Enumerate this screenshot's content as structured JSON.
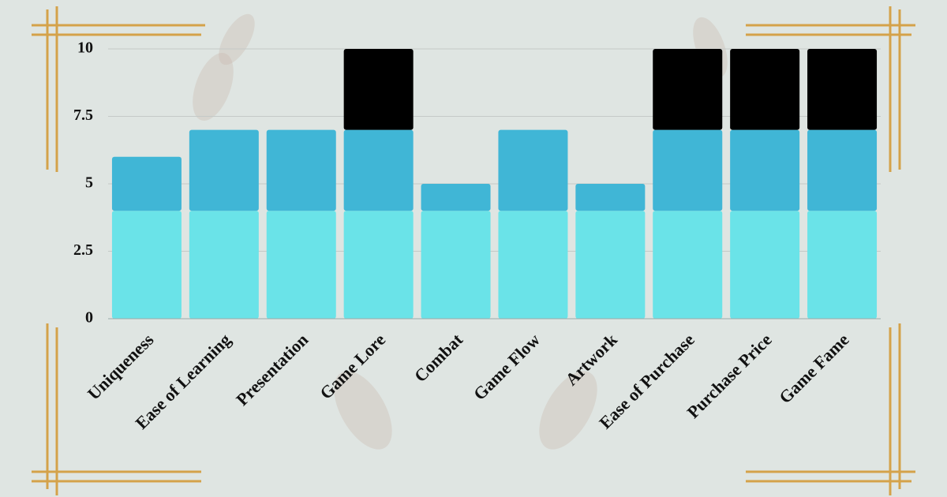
{
  "chart_data": {
    "type": "stacked-bar",
    "categories": [
      "Uniqueness",
      "Ease of Learning",
      "Presentation",
      "Game Lore",
      "Combat",
      "Game Flow",
      "Artwork",
      "Ease of Purchase",
      "Purchase Price",
      "Game Fame"
    ],
    "series": [
      {
        "color": "#6ae3e8",
        "values": [
          4,
          4,
          4,
          4,
          4,
          4,
          4,
          4,
          4,
          4
        ]
      },
      {
        "color": "#40b6d6",
        "values": [
          2,
          3,
          3,
          3,
          1,
          3,
          1,
          3,
          3,
          3
        ]
      },
      {
        "color": "#000000",
        "values": [
          0,
          0,
          0,
          3,
          0,
          0,
          0,
          3,
          3,
          3
        ]
      }
    ],
    "ylim": [
      0,
      10
    ],
    "yticks": [
      0,
      2.5,
      5,
      7.5,
      10
    ],
    "grid": true
  }
}
